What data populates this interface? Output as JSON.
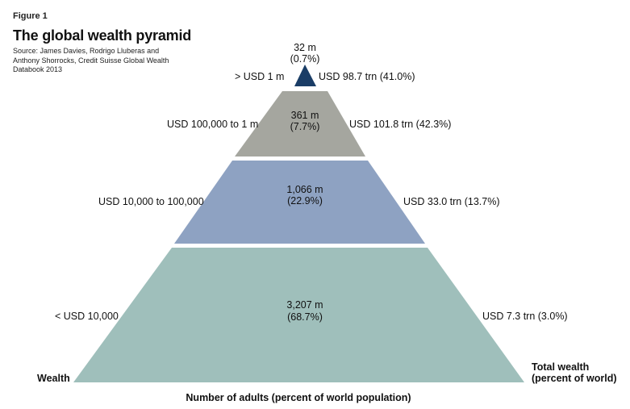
{
  "figure_label": "Figure 1",
  "title": "The global wealth pyramid",
  "source_lines": [
    "Source: James Davies, Rodrigo Lluberas and",
    "Anthony Shorrocks, Credit Suisse Global Wealth",
    "Databook 2013"
  ],
  "left_axis_label": "Wealth",
  "right_axis_label_lines": [
    "Total wealth",
    "(percent of world)"
  ],
  "bottom_axis_label": "Number of adults (percent of world population)",
  "colors": {
    "tier_top": "#1a3d66",
    "tier_upper": "#a5a69f",
    "tier_middle": "#8ea2c2",
    "tier_base": "#9fbfbb"
  },
  "tiers": [
    {
      "wealth_range": "> USD 1 m",
      "adults": "32 m",
      "adults_pct": "(0.7%)",
      "total_wealth": "USD 98.7 trn (41.0%)"
    },
    {
      "wealth_range": "USD 100,000 to 1 m",
      "adults": "361 m",
      "adults_pct": "(7.7%)",
      "total_wealth": "USD 101.8 trn (42.3%)"
    },
    {
      "wealth_range": "USD 10,000 to 100,000",
      "adults": "1,066 m",
      "adults_pct": "(22.9%)",
      "total_wealth": "USD 33.0 trn (13.7%)"
    },
    {
      "wealth_range": "< USD 10,000",
      "adults": "3,207 m",
      "adults_pct": "(68.7%)",
      "total_wealth": "USD 7.3 trn (3.0%)"
    }
  ]
}
